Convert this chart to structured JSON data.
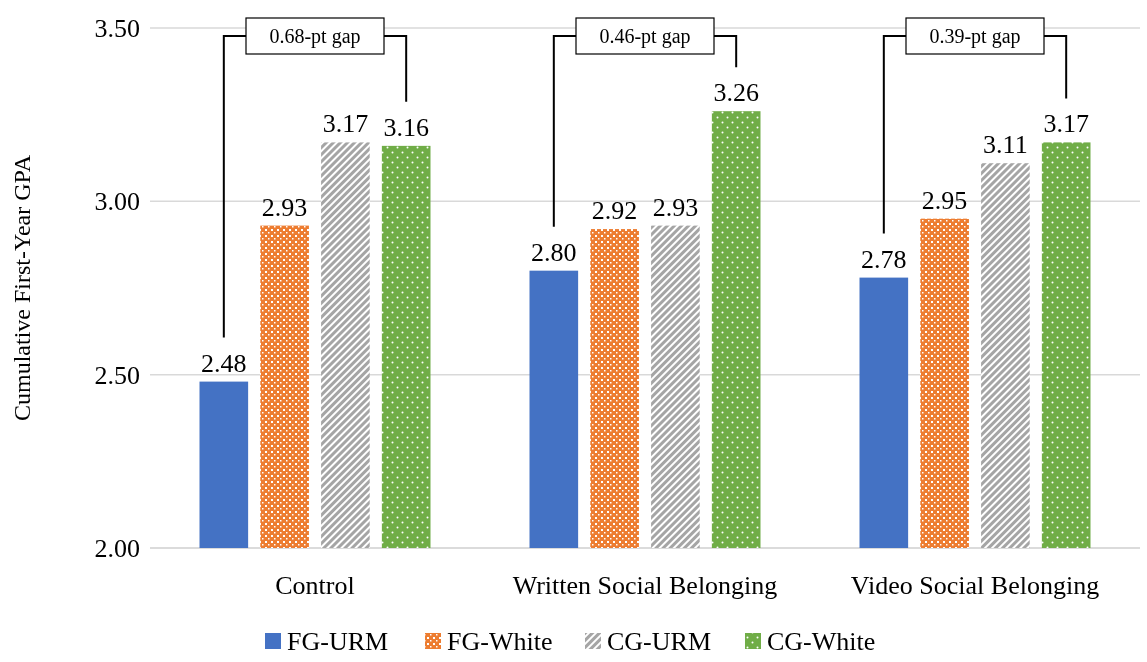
{
  "chart_data": {
    "type": "bar",
    "ylabel": "Cumulative First-Year GPA",
    "categories": [
      "Control",
      "Written Social Belonging",
      "Video Social Belonging"
    ],
    "series": [
      {
        "name": "FG-URM",
        "color": "#4472c4",
        "values": [
          2.48,
          2.8,
          2.78
        ],
        "value_labels": [
          "2.48",
          "2.80",
          "2.78"
        ]
      },
      {
        "name": "FG-White",
        "color": "#ed7d31",
        "values": [
          2.93,
          2.92,
          2.95
        ],
        "value_labels": [
          "2.93",
          "2.92",
          "2.95"
        ]
      },
      {
        "name": "CG-URM",
        "color": "#a5a5a5",
        "values": [
          3.17,
          2.93,
          3.11
        ],
        "value_labels": [
          "3.17",
          "2.93",
          "3.11"
        ]
      },
      {
        "name": "CG-White",
        "color": "#70ad47",
        "values": [
          3.16,
          3.26,
          3.17
        ],
        "value_labels": [
          "3.16",
          "3.26",
          "3.17"
        ]
      }
    ],
    "ylim": [
      2,
      3.5
    ],
    "yticks": [
      {
        "value": 2,
        "label": "2.00"
      },
      {
        "value": 2.5,
        "label": "2.50"
      },
      {
        "value": 3,
        "label": "3.00"
      },
      {
        "value": 3.5,
        "label": "3.50"
      }
    ],
    "grid": "y",
    "legend": "bottom",
    "annotations": [
      "0.68-pt gap",
      "0.46-pt gap",
      "0.39-pt gap"
    ]
  }
}
